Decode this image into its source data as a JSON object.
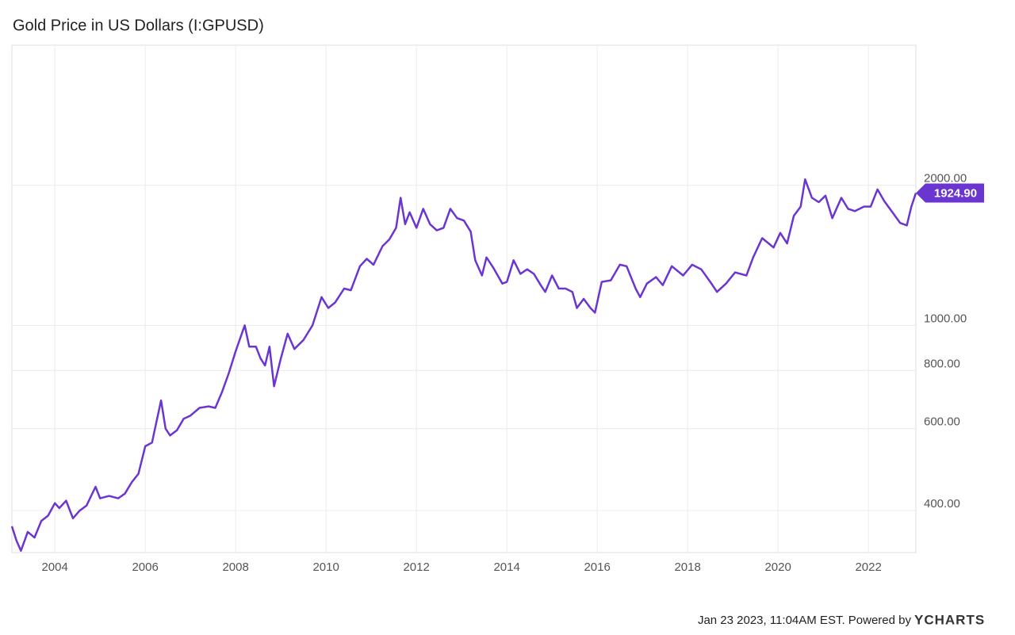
{
  "chart_data": {
    "type": "line",
    "title": "Gold Price in US Dollars (I:GPUSD)",
    "x": [
      2003.05,
      2003.15,
      2003.25,
      2003.4,
      2003.55,
      2003.7,
      2003.85,
      2004.0,
      2004.1,
      2004.25,
      2004.4,
      2004.55,
      2004.7,
      2004.9,
      2005.0,
      2005.2,
      2005.4,
      2005.55,
      2005.7,
      2005.85,
      2006.0,
      2006.15,
      2006.35,
      2006.45,
      2006.55,
      2006.7,
      2006.85,
      2007.0,
      2007.2,
      2007.4,
      2007.55,
      2007.7,
      2007.85,
      2008.0,
      2008.2,
      2008.3,
      2008.45,
      2008.55,
      2008.65,
      2008.75,
      2008.85,
      2009.0,
      2009.15,
      2009.3,
      2009.5,
      2009.7,
      2009.9,
      2010.05,
      2010.2,
      2010.4,
      2010.55,
      2010.75,
      2010.9,
      2011.05,
      2011.25,
      2011.4,
      2011.55,
      2011.65,
      2011.75,
      2011.85,
      2012.0,
      2012.15,
      2012.3,
      2012.45,
      2012.6,
      2012.75,
      2012.9,
      2013.05,
      2013.2,
      2013.3,
      2013.45,
      2013.55,
      2013.7,
      2013.9,
      2014.0,
      2014.15,
      2014.3,
      2014.45,
      2014.6,
      2014.75,
      2014.85,
      2015.0,
      2015.15,
      2015.3,
      2015.45,
      2015.55,
      2015.7,
      2015.85,
      2015.95,
      2016.1,
      2016.3,
      2016.5,
      2016.65,
      2016.85,
      2016.95,
      2017.1,
      2017.3,
      2017.45,
      2017.65,
      2017.9,
      2018.1,
      2018.3,
      2018.5,
      2018.65,
      2018.85,
      2019.05,
      2019.3,
      2019.45,
      2019.65,
      2019.9,
      2020.05,
      2020.2,
      2020.35,
      2020.5,
      2020.6,
      2020.75,
      2020.9,
      2021.05,
      2021.2,
      2021.4,
      2021.55,
      2021.7,
      2021.9,
      2022.05,
      2022.2,
      2022.35,
      2022.55,
      2022.7,
      2022.85,
      2022.95,
      2023.05
    ],
    "values": [
      370,
      345,
      328,
      360,
      350,
      380,
      390,
      415,
      405,
      420,
      385,
      400,
      410,
      450,
      425,
      430,
      425,
      435,
      460,
      480,
      550,
      560,
      690,
      600,
      580,
      595,
      630,
      640,
      665,
      670,
      665,
      720,
      790,
      880,
      1000,
      900,
      900,
      850,
      820,
      900,
      740,
      850,
      960,
      890,
      930,
      1000,
      1150,
      1090,
      1120,
      1200,
      1190,
      1340,
      1390,
      1350,
      1480,
      1530,
      1620,
      1880,
      1650,
      1750,
      1620,
      1780,
      1650,
      1600,
      1620,
      1780,
      1700,
      1680,
      1590,
      1380,
      1280,
      1400,
      1330,
      1230,
      1240,
      1380,
      1290,
      1320,
      1290,
      1220,
      1180,
      1280,
      1200,
      1200,
      1180,
      1090,
      1140,
      1090,
      1065,
      1240,
      1250,
      1350,
      1340,
      1200,
      1150,
      1230,
      1270,
      1220,
      1340,
      1280,
      1350,
      1320,
      1240,
      1180,
      1230,
      1300,
      1280,
      1400,
      1540,
      1470,
      1580,
      1500,
      1720,
      1800,
      2060,
      1880,
      1840,
      1900,
      1700,
      1880,
      1780,
      1760,
      1800,
      1800,
      1960,
      1850,
      1740,
      1660,
      1640,
      1800,
      1924.9
    ],
    "color": "#6b35d0",
    "log_y": true,
    "grid": true,
    "xlim": [
      2003.05,
      2023.05
    ],
    "xticks": [
      2004,
      2006,
      2008,
      2010,
      2012,
      2014,
      2016,
      2018,
      2020,
      2022
    ],
    "ylim": [
      325,
      4000
    ],
    "yticks": [
      {
        "value": 400,
        "label": "400.00"
      },
      {
        "value": 600,
        "label": "600.00"
      },
      {
        "value": 800,
        "label": "800.00"
      },
      {
        "value": 1000,
        "label": "1000.00"
      },
      {
        "value": 2000,
        "label": "2000.00"
      }
    ],
    "annotation": {
      "value": 1924.9,
      "label": "1924.90"
    },
    "source": "Jan 23 2023, 11:04AM EST. Powered by",
    "brand": "YCHARTS"
  }
}
